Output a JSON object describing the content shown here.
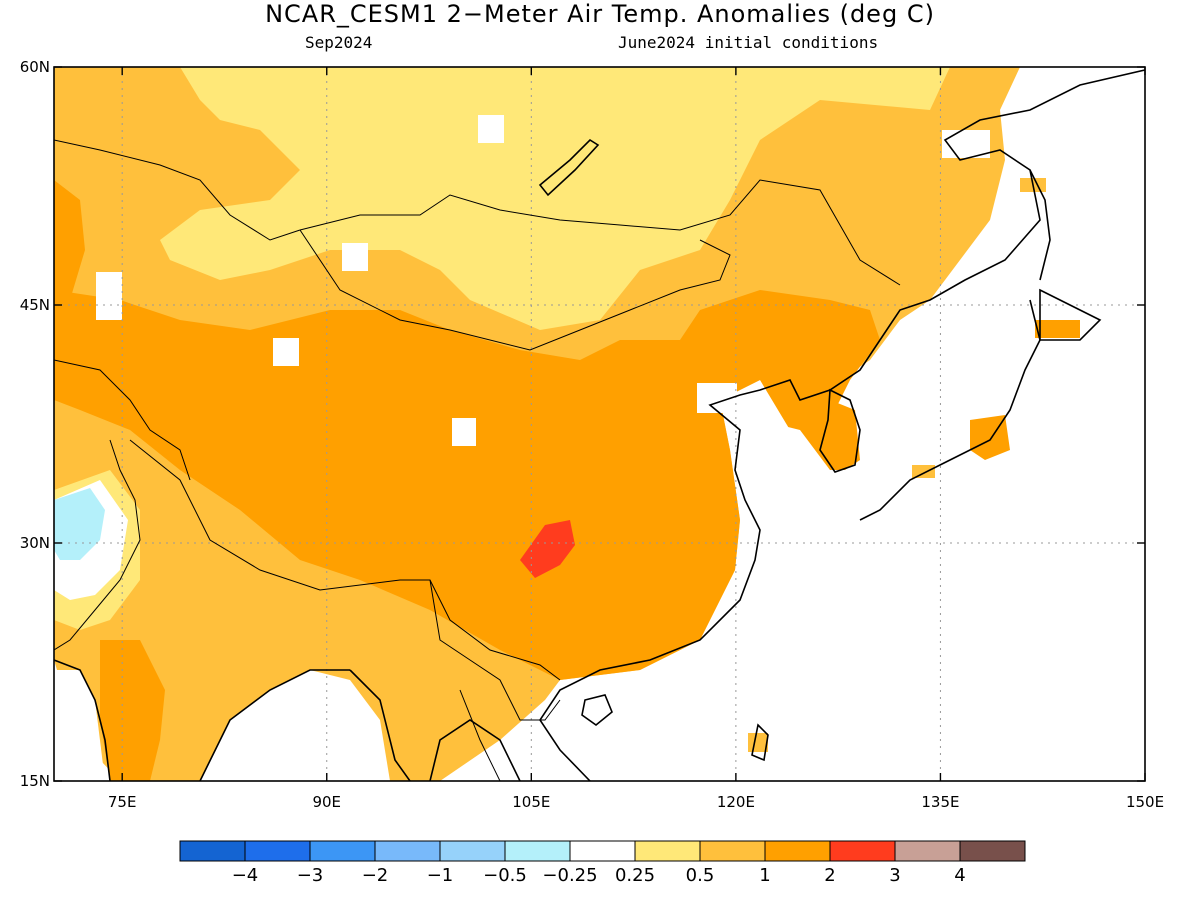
{
  "title": "NCAR_CESM1 2−Meter Air Temp. Anomalies (deg C)",
  "valid_month": "Sep2024",
  "init_conditions": "June2024 initial conditions",
  "map": {
    "lon_range": [
      70,
      150
    ],
    "lat_range": [
      15,
      60
    ],
    "lon_ticks": [
      {
        "value": 75,
        "label": "75E"
      },
      {
        "value": 90,
        "label": "90E"
      },
      {
        "value": 105,
        "label": "105E"
      },
      {
        "value": 120,
        "label": "120E"
      },
      {
        "value": 135,
        "label": "135E"
      },
      {
        "value": 150,
        "label": "150E"
      }
    ],
    "lat_ticks": [
      {
        "value": 60,
        "label": "60N"
      },
      {
        "value": 45,
        "label": "45N"
      },
      {
        "value": 30,
        "label": "30N"
      },
      {
        "value": 15,
        "label": "15N"
      }
    ],
    "gridlines": true
  },
  "colorbar": {
    "colors": [
      "#1464d2",
      "#1e6eeb",
      "#3c96f5",
      "#78b9fa",
      "#96d2fa",
      "#b4f0fa",
      "#ffffff",
      "#ffe878",
      "#ffc03c",
      "#ffa000",
      "#ff3c1e",
      "#c8a096",
      "#78504b"
    ],
    "labels": [
      "−4",
      "−3",
      "−2",
      "−1",
      "−0.5",
      "−0.25",
      "0.25",
      "0.5",
      "1",
      "2",
      "3",
      "4"
    ]
  }
}
